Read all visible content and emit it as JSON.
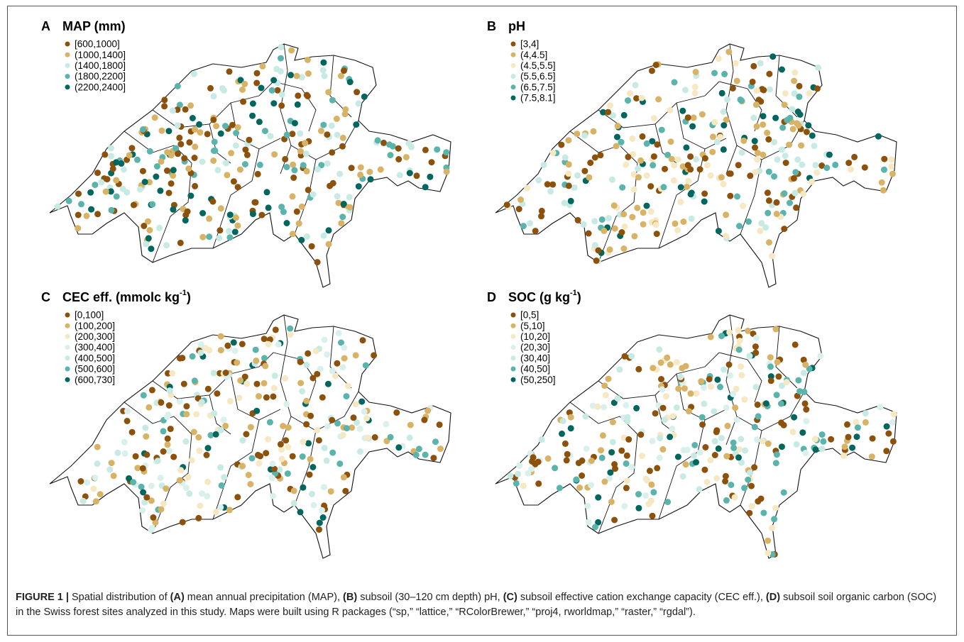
{
  "panels": [
    {
      "letter": "A",
      "title": "MAP (mm)",
      "legend": [
        {
          "label": "[600,1000]",
          "color": "#8c510a"
        },
        {
          "label": "(1000,1400]",
          "color": "#d8b365"
        },
        {
          "label": "(1400,1800]",
          "color": "#c7eae5"
        },
        {
          "label": "(1800,2200]",
          "color": "#5ab4ac"
        },
        {
          "label": "(2200,2400]",
          "color": "#01665e"
        }
      ]
    },
    {
      "letter": "B",
      "title": "pH",
      "legend": [
        {
          "label": "[3,4]",
          "color": "#8c510a"
        },
        {
          "label": "(4,4.5]",
          "color": "#d8b365"
        },
        {
          "label": "(4.5,5.5]",
          "color": "#f6e8c3"
        },
        {
          "label": "(5.5,6.5]",
          "color": "#c7eae5"
        },
        {
          "label": "(6.5,7.5]",
          "color": "#5ab4ac"
        },
        {
          "label": "(7.5,8.1]",
          "color": "#01665e"
        }
      ]
    },
    {
      "letter": "C",
      "title": "CEC eff. (mmolc kg",
      "title_sup": "-1",
      "title_end": ")",
      "legend": [
        {
          "label": "[0,100]",
          "color": "#8c510a"
        },
        {
          "label": "(100,200]",
          "color": "#d8b365"
        },
        {
          "label": "(200,300]",
          "color": "#f6e8c3"
        },
        {
          "label": "(300,400]",
          "color": "#d9f0ec"
        },
        {
          "label": "(400,500]",
          "color": "#c7eae5"
        },
        {
          "label": "(500,600]",
          "color": "#5ab4ac"
        },
        {
          "label": "(600,730]",
          "color": "#01665e"
        }
      ]
    },
    {
      "letter": "D",
      "title": "SOC (g kg",
      "title_sup": "-1",
      "title_end": ")",
      "legend": [
        {
          "label": "[0,5]",
          "color": "#8c510a"
        },
        {
          "label": "(5,10]",
          "color": "#d8b365"
        },
        {
          "label": "(10,20]",
          "color": "#f6e8c3"
        },
        {
          "label": "(20,30]",
          "color": "#d9f0ec"
        },
        {
          "label": "(30,40]",
          "color": "#c7eae5"
        },
        {
          "label": "(40,50]",
          "color": "#5ab4ac"
        },
        {
          "label": "(50,250]",
          "color": "#01665e"
        }
      ]
    }
  ],
  "caption": [
    {
      "text": "FIGURE 1 | ",
      "bold": true
    },
    {
      "text": "Spatial distribution of ",
      "bold": false
    },
    {
      "text": "(A)",
      "bold": true
    },
    {
      "text": " mean annual precipitation (MAP), ",
      "bold": false
    },
    {
      "text": "(B)",
      "bold": true
    },
    {
      "text": " subsoil (30–120 cm depth) pH, ",
      "bold": false
    },
    {
      "text": "(C)",
      "bold": true
    },
    {
      "text": " subsoil effective cation exchange capacity (CEC eff.), ",
      "bold": false
    },
    {
      "text": "(D)",
      "bold": true
    },
    {
      "text": " subsoil soil organic carbon (SOC) in the Swiss forest sites analyzed in this study. Maps were built using R packages (“sp,” “lattice,” “RColorBrewer,” “proj4, rworldmap,” “raster,” “rgdal”).",
      "bold": false
    }
  ]
}
